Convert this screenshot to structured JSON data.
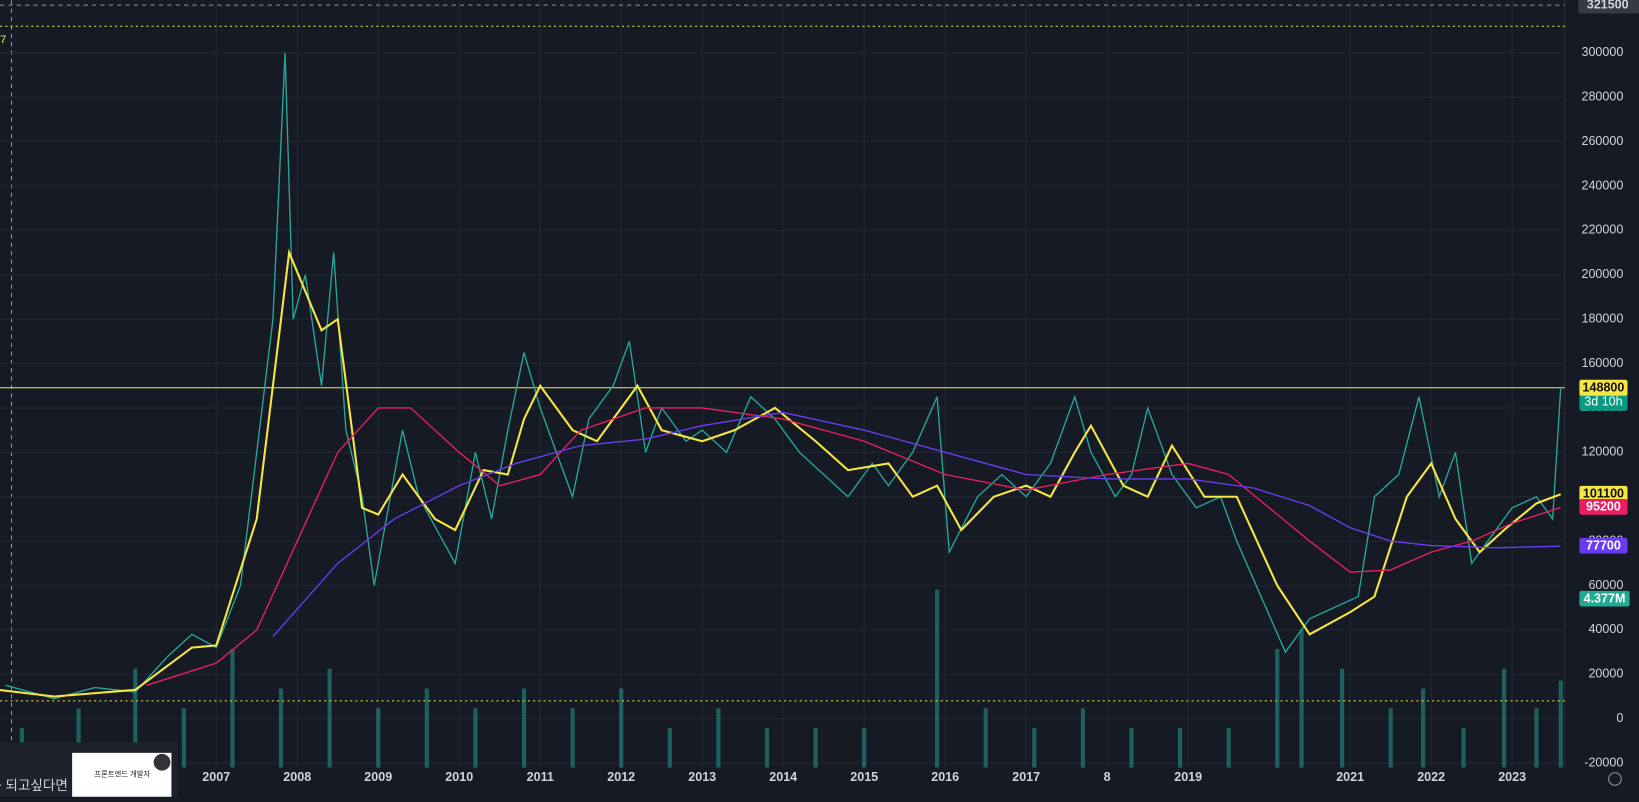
{
  "chart_data": {
    "type": "line",
    "xlim": [
      2004.33,
      2023.65
    ],
    "ylim": [
      -22000,
      323700
    ],
    "xticks": [
      2007,
      2008,
      2009,
      2010,
      2011,
      2012,
      2013,
      2014,
      2015,
      2016,
      2017,
      {
        "value": 2018,
        "label": "8"
      },
      2019,
      2021,
      2022,
      2023
    ],
    "yticks": [
      -20000,
      0,
      20000,
      40000,
      60000,
      80000,
      100000,
      120000,
      140000,
      160000,
      180000,
      200000,
      220000,
      240000,
      260000,
      280000,
      300000
    ],
    "grid": true,
    "series": [
      {
        "name": "price",
        "color": "#26a69a",
        "x": [
          2004.4,
          2005,
          2005.5,
          2006,
          2006.4,
          2006.7,
          2007,
          2007.3,
          2007.5,
          2007.7,
          2007.85,
          2007.95,
          2008.1,
          2008.3,
          2008.45,
          2008.6,
          2008.8,
          2008.95,
          2009.1,
          2009.3,
          2009.5,
          2009.8,
          2009.95,
          2010.2,
          2010.4,
          2010.6,
          2010.8,
          2011,
          2011.2,
          2011.4,
          2011.6,
          2011.9,
          2012.1,
          2012.3,
          2012.5,
          2012.8,
          2013,
          2013.3,
          2013.6,
          2013.9,
          2014.2,
          2014.5,
          2014.8,
          2015.1,
          2015.3,
          2015.6,
          2015.9,
          2016.05,
          2016.4,
          2016.7,
          2017,
          2017.3,
          2017.6,
          2017.8,
          2018.1,
          2018.3,
          2018.5,
          2018.8,
          2019.1,
          2019.4,
          2019.6,
          2019.9,
          2020.2,
          2020.5,
          2020.8,
          2021.1,
          2021.3,
          2021.6,
          2021.85,
          2022.1,
          2022.3,
          2022.5,
          2022.7,
          2023,
          2023.3,
          2023.5,
          2023.6
        ],
        "values": [
          15000,
          9000,
          14000,
          12000,
          28000,
          38000,
          32000,
          60000,
          120000,
          180000,
          300000,
          180000,
          200000,
          150000,
          210000,
          130000,
          100000,
          60000,
          90000,
          130000,
          100000,
          80000,
          70000,
          120000,
          90000,
          130000,
          165000,
          140000,
          120000,
          100000,
          135000,
          150000,
          170000,
          120000,
          140000,
          125000,
          130000,
          120000,
          145000,
          135000,
          120000,
          110000,
          100000,
          115000,
          105000,
          120000,
          145000,
          75000,
          100000,
          110000,
          100000,
          115000,
          145000,
          120000,
          100000,
          110000,
          140000,
          110000,
          95000,
          100000,
          80000,
          55000,
          30000,
          45000,
          50000,
          55000,
          100000,
          110000,
          145000,
          100000,
          120000,
          70000,
          80000,
          95000,
          100000,
          90000,
          149100
        ]
      },
      {
        "name": "ma-short",
        "color": "#f5e642",
        "x": [
          2004.3,
          2005,
          2006,
          2006.7,
          2007,
          2007.5,
          2007.9,
          2008.3,
          2008.5,
          2008.8,
          2009,
          2009.3,
          2009.7,
          2009.95,
          2010.3,
          2010.6,
          2010.8,
          2011,
          2011.4,
          2011.7,
          2012.2,
          2012.5,
          2013,
          2013.4,
          2013.9,
          2014.4,
          2014.8,
          2015.3,
          2015.6,
          2015.9,
          2016.2,
          2016.6,
          2017,
          2017.3,
          2017.6,
          2017.8,
          2018.2,
          2018.5,
          2018.8,
          2019.2,
          2019.6,
          2020.1,
          2020.5,
          2021,
          2021.3,
          2021.7,
          2022,
          2022.3,
          2022.6,
          2022.9,
          2023.3,
          2023.6
        ],
        "values": [
          13000,
          10000,
          13000,
          32000,
          33000,
          90000,
          210000,
          175000,
          180000,
          95000,
          92000,
          110000,
          90000,
          85000,
          112000,
          110000,
          135000,
          150000,
          130000,
          125000,
          150000,
          130000,
          125000,
          130000,
          140000,
          125000,
          112000,
          115000,
          100000,
          105000,
          85000,
          100000,
          105000,
          100000,
          120000,
          132000,
          105000,
          100000,
          123000,
          100000,
          100000,
          60000,
          38000,
          48000,
          55000,
          100000,
          115000,
          90000,
          75000,
          85000,
          97000,
          101100
        ]
      },
      {
        "name": "ma-mid",
        "color": "#e91e63",
        "x": [
          2006.14,
          2007,
          2007.5,
          2008,
          2008.5,
          2009,
          2009.4,
          2010,
          2010.5,
          2011,
          2011.5,
          2012.3,
          2013,
          2014,
          2015,
          2016,
          2017,
          2018,
          2019,
          2019.5,
          2020,
          2020.5,
          2021,
          2021.5,
          2022,
          2022.5,
          2023,
          2023.6
        ],
        "values": [
          15000,
          25000,
          40000,
          80000,
          120000,
          140000,
          140000,
          120000,
          105000,
          110000,
          130000,
          140000,
          140000,
          135000,
          125000,
          110000,
          103000,
          110000,
          115000,
          110000,
          95000,
          80000,
          66000,
          67000,
          75000,
          80000,
          88000,
          95200
        ]
      },
      {
        "name": "ma-long",
        "color": "#6a3cf0",
        "x": [
          2007.7,
          2008.5,
          2009.2,
          2010,
          2010.7,
          2011.5,
          2012.3,
          2013,
          2014,
          2015,
          2016,
          2017,
          2018,
          2019,
          2019.8,
          2020.5,
          2021,
          2021.5,
          2022,
          2022.8,
          2023.6
        ],
        "values": [
          37000,
          70000,
          90000,
          105000,
          115000,
          123000,
          126000,
          132000,
          138000,
          130000,
          120000,
          110000,
          108000,
          108000,
          104000,
          96000,
          86000,
          80000,
          78000,
          77000,
          77700
        ]
      }
    ],
    "volume": {
      "x": [
        2004.6,
        2005.3,
        2006,
        2006.6,
        2007.2,
        2007.8,
        2008.4,
        2009,
        2009.6,
        2010.2,
        2010.8,
        2011.4,
        2012,
        2012.6,
        2013.2,
        2013.8,
        2014.4,
        2015,
        2015.9,
        2016.5,
        2017.1,
        2017.7,
        2018.3,
        2018.9,
        2019.5,
        2020.1,
        2020.4,
        2020.9,
        2021.5,
        2021.9,
        2022.4,
        2022.9,
        2023.3,
        2023.6
      ],
      "values": [
        2,
        3,
        5,
        3,
        6,
        4,
        5,
        3,
        4,
        3,
        4,
        3,
        4,
        2,
        3,
        2,
        2,
        2,
        9,
        3,
        2,
        3,
        2,
        2,
        2,
        6,
        7,
        5,
        3,
        4,
        2,
        5,
        3,
        4.4
      ],
      "color": "#26a69a",
      "label": "4.377M"
    },
    "hlines": [
      {
        "value": 149100,
        "color": "#f5e642",
        "style": "solid"
      },
      {
        "value": 312000,
        "color": "#f5e642",
        "style": "dotted"
      },
      {
        "value": 8000,
        "color": "#f5e642",
        "style": "dotted"
      }
    ],
    "crosshair": 321500,
    "price_labels": [
      {
        "value": 149100,
        "color": "#089981",
        "sub": "3d 10h"
      },
      {
        "value": 148800,
        "color": "#f5e642"
      },
      {
        "value": 101100,
        "color": "#f5e642"
      },
      {
        "value": 95200,
        "color": "#e91e63"
      },
      {
        "value": 77700,
        "color": "#6a3cf0"
      }
    ],
    "corner_text": "7"
  },
  "ad": {
    "caption": "~ 되고싶다면",
    "title": "프론트엔드 개발자"
  }
}
